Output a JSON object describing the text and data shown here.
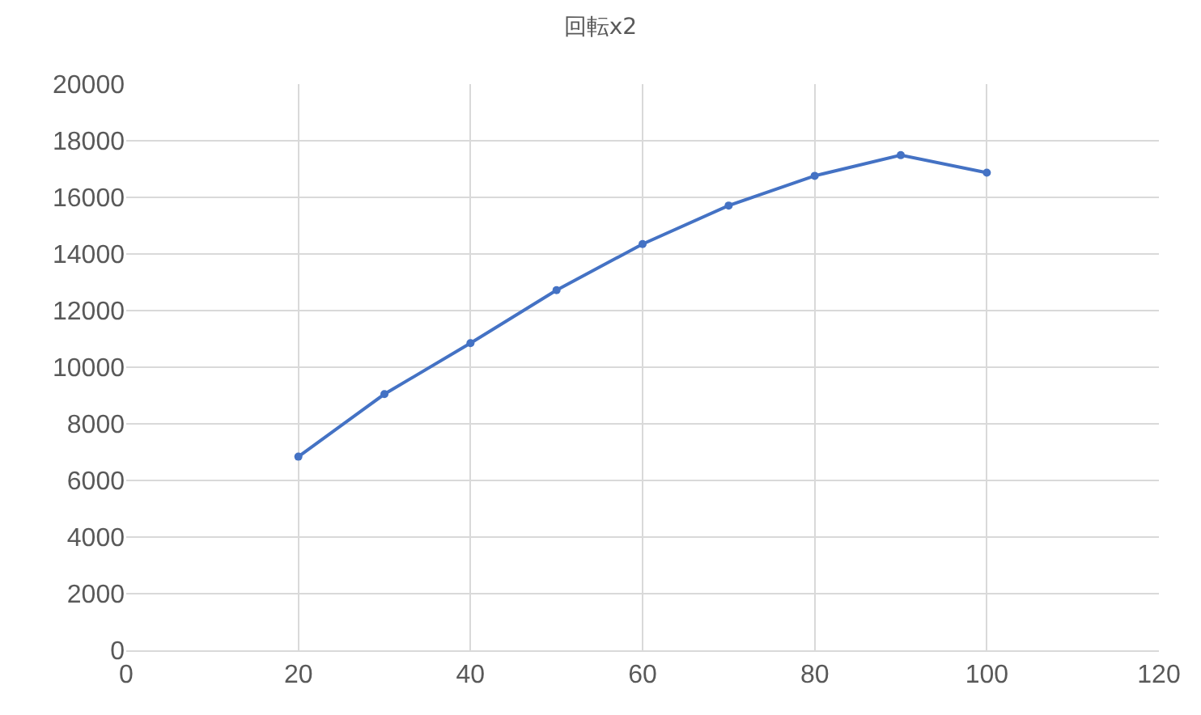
{
  "chart_data": {
    "type": "line",
    "title": "回転x2",
    "x": [
      20,
      30,
      40,
      50,
      60,
      70,
      80,
      90,
      100
    ],
    "series": [
      {
        "color": "#4472c4",
        "values": [
          6840,
          9050,
          10850,
          12720,
          14350,
          15710,
          16760,
          17490,
          16870
        ]
      }
    ],
    "xlim": [
      0,
      120
    ],
    "xticks": [
      0,
      20,
      40,
      60,
      80,
      100,
      120
    ],
    "ylim": [
      0,
      20000
    ],
    "yticks": [
      0,
      2000,
      4000,
      6000,
      8000,
      10000,
      12000,
      14000,
      16000,
      18000,
      20000
    ],
    "grid": true,
    "marker": "circle",
    "line_style": "solid"
  }
}
